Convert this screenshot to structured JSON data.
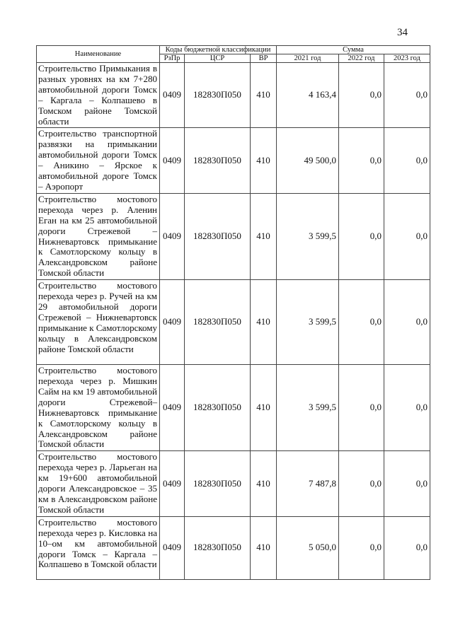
{
  "page_number": "34",
  "header": {
    "name": "Наименование",
    "codes_group": "Коды бюджетной классификации",
    "sum_group": "Сумма",
    "rzpr": "РзПр",
    "csr": "ЦСР",
    "vr": "ВР",
    "y2021": "2021 год",
    "y2022": "2022 год",
    "y2023": "2023 год"
  },
  "rows": [
    {
      "name": "Строительство Примыкания в разных уровнях на км 7+280 автомобильной дороги Томск – Каргала – Колпашево в Томском районе Томской области",
      "rzpr": "0409",
      "csr": "182830П050",
      "vr": "410",
      "y2021": "4 163,4",
      "y2022": "0,0",
      "y2023": "0,0"
    },
    {
      "name": "Строительство транспортной развязки на примыкании автомобильной дороги Томск – Аникино – Ярское к автомобильной дороге Томск – Аэропорт",
      "rzpr": "0409",
      "csr": "182830П050",
      "vr": "410",
      "y2021": "49 500,0",
      "y2022": "0,0",
      "y2023": "0,0"
    },
    {
      "name": "Строительство мостового перехода через р. Аленин Еган на км 25 автомобильной дороги Стрежевой – Нижневартовск примыкание к Самотлорскому кольцу в Александровском районе Томской области",
      "rzpr": "0409",
      "csr": "182830П050",
      "vr": "410",
      "y2021": "3 599,5",
      "y2022": "0,0",
      "y2023": "0,0"
    },
    {
      "name": "Строительство мостового перехода через р. Ручей на км 29 автомобильной дороги Стрежевой – Нижневартовск примыкание к Самотлорскому кольцу в Александровском районе Томской области",
      "rzpr": "0409",
      "csr": "182830П050",
      "vr": "410",
      "y2021": "3 599,5",
      "y2022": "0,0",
      "y2023": "0,0"
    },
    {
      "name": "Строительство мостового перехода через р. Мишкин Сайм на км 19 автомобильной дороги Стрежевой– Нижневартовск примыкание к Самотлорскому кольцу в Александровском районе Томской области",
      "rzpr": "0409",
      "csr": "182830П050",
      "vr": "410",
      "y2021": "3 599,5",
      "y2022": "0,0",
      "y2023": "0,0"
    },
    {
      "name": "Строительство мостового перехода через р. Ларьеган на км 19+600 автомобильной дороги Александровское – 35 км в Александровском районе Томской области",
      "rzpr": "0409",
      "csr": "182830П050",
      "vr": "410",
      "y2021": "7 487,8",
      "y2022": "0,0",
      "y2023": "0,0"
    },
    {
      "name": "Строительство мостового перехода через р. Кисловка на 10–ом км автомобильной дороги Томск – Каргала – Колпашево в Томской области",
      "rzpr": "0409",
      "csr": "182830П050",
      "vr": "410",
      "y2021": "5 050,0",
      "y2022": "0,0",
      "y2023": "0,0"
    }
  ]
}
